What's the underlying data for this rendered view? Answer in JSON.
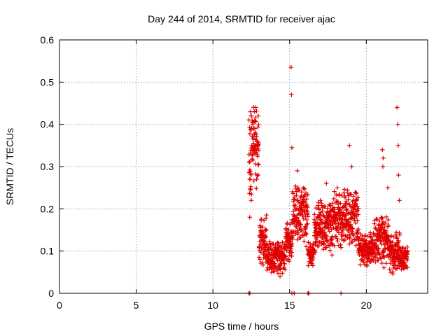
{
  "chart_data": {
    "type": "scatter",
    "title": "Day 244 of 2014, SRMTID for receiver ajac",
    "xlabel": "GPS time / hours",
    "ylabel": "SRMTID / TECUs",
    "xlim": [
      0,
      24
    ],
    "ylim": [
      0,
      0.6
    ],
    "x_ticks": [
      0,
      5,
      10,
      15,
      20
    ],
    "y_ticks": [
      0,
      0.1,
      0.2,
      0.3,
      0.4,
      0.5,
      0.6
    ],
    "x_tick_labels": [
      "0",
      "5",
      "10",
      "15",
      "20"
    ],
    "y_tick_labels": [
      "0",
      "0.1",
      "0.2",
      "0.3",
      "0.4",
      "0.5",
      "0.6"
    ],
    "grid": true,
    "marker": "plus",
    "series": [
      {
        "name": "SRMTID",
        "color": "#e00000",
        "segments": [
          {
            "t0": 12.35,
            "t1": 13.0,
            "base": 0.33,
            "spread": 0.1
          },
          {
            "t0": 13.0,
            "t1": 13.5,
            "base": 0.12,
            "spread": 0.06
          },
          {
            "t0": 13.5,
            "t1": 14.7,
            "base": 0.08,
            "spread": 0.04
          },
          {
            "t0": 14.7,
            "t1": 15.2,
            "base": 0.12,
            "spread": 0.05
          },
          {
            "t0": 15.2,
            "t1": 16.2,
            "base": 0.18,
            "spread": 0.07
          },
          {
            "t0": 16.2,
            "t1": 16.6,
            "base": 0.09,
            "spread": 0.03
          },
          {
            "t0": 16.6,
            "t1": 17.8,
            "base": 0.15,
            "spread": 0.06
          },
          {
            "t0": 17.8,
            "t1": 19.5,
            "base": 0.17,
            "spread": 0.07
          },
          {
            "t0": 19.5,
            "t1": 20.5,
            "base": 0.1,
            "spread": 0.04
          },
          {
            "t0": 20.5,
            "t1": 21.5,
            "base": 0.12,
            "spread": 0.06
          },
          {
            "t0": 21.5,
            "t1": 22.2,
            "base": 0.09,
            "spread": 0.05
          },
          {
            "t0": 22.2,
            "t1": 22.7,
            "base": 0.08,
            "spread": 0.03
          }
        ],
        "points": [
          [
            12.45,
            0.43
          ],
          [
            12.5,
            0.42
          ],
          [
            12.55,
            0.41
          ],
          [
            12.6,
            0.4
          ],
          [
            12.7,
            0.43
          ],
          [
            12.8,
            0.44
          ],
          [
            12.9,
            0.36
          ],
          [
            12.95,
            0.35
          ],
          [
            12.85,
            0.27
          ],
          [
            12.4,
            0.27
          ],
          [
            12.5,
            0.22
          ],
          [
            12.4,
            0.18
          ],
          [
            15.1,
            0.535
          ],
          [
            15.12,
            0.47
          ],
          [
            15.15,
            0.345
          ],
          [
            15.5,
            0.29
          ],
          [
            15.55,
            0.25
          ],
          [
            18.9,
            0.35
          ],
          [
            19.05,
            0.3
          ],
          [
            21.05,
            0.34
          ],
          [
            21.1,
            0.32
          ],
          [
            21.08,
            0.3
          ],
          [
            21.4,
            0.25
          ],
          [
            22.0,
            0.44
          ],
          [
            22.05,
            0.4
          ],
          [
            22.08,
            0.35
          ],
          [
            22.1,
            0.28
          ],
          [
            22.15,
            0.22
          ],
          [
            17.4,
            0.26
          ],
          [
            18.1,
            0.25
          ],
          [
            17.0,
            0.22
          ],
          [
            12.35,
            0.0
          ],
          [
            12.4,
            0.0
          ],
          [
            15.15,
            0.0
          ],
          [
            15.3,
            0.0
          ],
          [
            16.2,
            0.0
          ],
          [
            16.25,
            0.0
          ],
          [
            18.35,
            0.0
          ]
        ]
      }
    ]
  }
}
